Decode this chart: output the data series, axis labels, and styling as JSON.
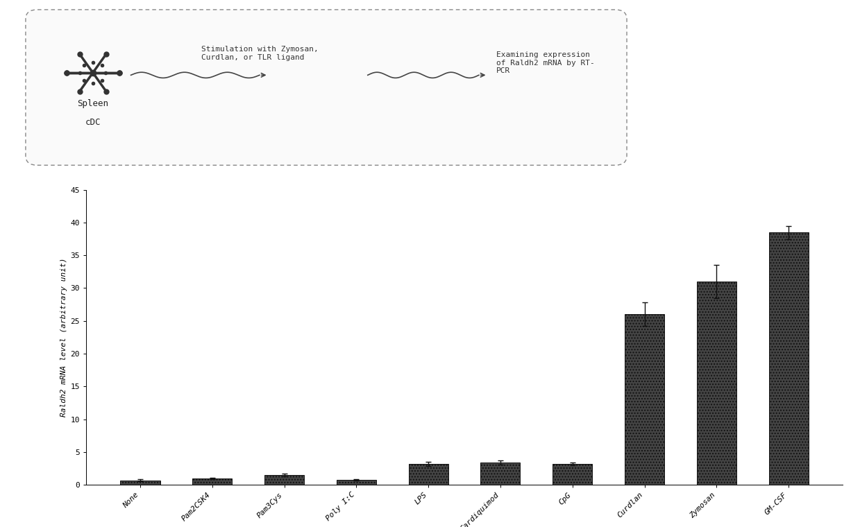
{
  "categories": [
    "None",
    "Pam2CSK4",
    "Pam3Cys",
    "Poly I:C",
    "LPS",
    "Gardiquimod",
    "CpG",
    "Curdlan",
    "Zymosan",
    "GM-CSF"
  ],
  "values": [
    0.7,
    1.0,
    1.5,
    0.8,
    3.2,
    3.4,
    3.2,
    26.0,
    31.0,
    38.5
  ],
  "errors": [
    0.15,
    0.12,
    0.2,
    0.1,
    0.35,
    0.3,
    0.25,
    1.8,
    2.5,
    1.0
  ],
  "bar_color": "#444444",
  "ylabel": "Raldh2 mRNA level (arbitrary unit)",
  "ylim": [
    0,
    45
  ],
  "yticks": [
    0,
    5,
    10,
    15,
    20,
    25,
    30,
    35,
    40,
    45
  ],
  "fig_bg": "#ffffff",
  "box_text_spleen": "Spleen",
  "box_text_cdc": "cDC",
  "box_arrow1_text": "Stimulation with Zymosan,\nCurdlan, or TLR ligand",
  "box_arrow2_text": "Examining expression\nof Raldh2 mRNA by RT-\nPCR",
  "axis_fontsize": 8,
  "tick_fontsize": 8,
  "label_fontsize": 8
}
